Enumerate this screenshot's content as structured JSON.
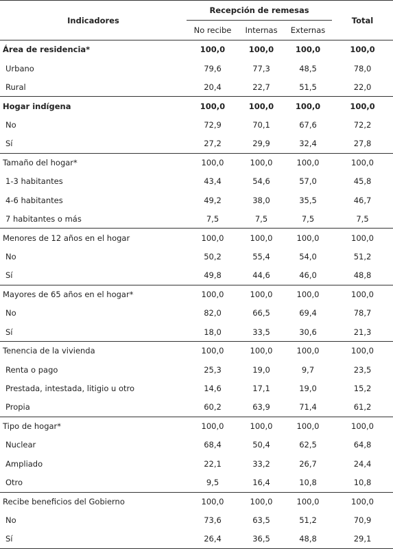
{
  "header": {
    "indicator": "Indicadores",
    "group": "Recepción de remesas",
    "subcols": [
      "No recibe",
      "Internas",
      "Externas"
    ],
    "total": "Total"
  },
  "sections": [
    {
      "label": "Área de residencia*",
      "bold": true,
      "values": [
        "100,0",
        "100,0",
        "100,0",
        "100,0"
      ],
      "rows": [
        {
          "label": "Urbano",
          "values": [
            "79,6",
            "77,3",
            "48,5",
            "78,0"
          ]
        },
        {
          "label": "Rural",
          "values": [
            "20,4",
            "22,7",
            "51,5",
            "22,0"
          ]
        }
      ]
    },
    {
      "label": "Hogar indígena",
      "bold": true,
      "values": [
        "100,0",
        "100,0",
        "100,0",
        "100,0"
      ],
      "rows": [
        {
          "label": "No",
          "values": [
            "72,9",
            "70,1",
            "67,6",
            "72,2"
          ]
        },
        {
          "label": "Sí",
          "values": [
            "27,2",
            "29,9",
            "32,4",
            "27,8"
          ]
        }
      ]
    },
    {
      "label": "Tamaño del hogar*",
      "bold": false,
      "values": [
        "100,0",
        "100,0",
        "100,0",
        "100,0"
      ],
      "rows": [
        {
          "label": "1-3 habitantes",
          "values": [
            "43,4",
            "54,6",
            "57,0",
            "45,8"
          ]
        },
        {
          "label": "4-6 habitantes",
          "values": [
            "49,2",
            "38,0",
            "35,5",
            "46,7"
          ]
        },
        {
          "label": "7 habitantes o más",
          "values": [
            "7,5",
            "7,5",
            "7,5",
            "7,5"
          ]
        }
      ]
    },
    {
      "label": "Menores de 12 años en el hogar",
      "bold": false,
      "values": [
        "100,0",
        "100,0",
        "100,0",
        "100,0"
      ],
      "rows": [
        {
          "label": "No",
          "values": [
            "50,2",
            "55,4",
            "54,0",
            "51,2"
          ]
        },
        {
          "label": "Sí",
          "values": [
            "49,8",
            "44,6",
            "46,0",
            "48,8"
          ]
        }
      ]
    },
    {
      "label": "Mayores de 65 años en el hogar*",
      "bold": false,
      "values": [
        "100,0",
        "100,0",
        "100,0",
        "100,0"
      ],
      "rows": [
        {
          "label": "No",
          "values": [
            "82,0",
            "66,5",
            "69,4",
            "78,7"
          ]
        },
        {
          "label": "Sí",
          "values": [
            "18,0",
            "33,5",
            "30,6",
            "21,3"
          ]
        }
      ]
    },
    {
      "label": "Tenencia de la vivienda",
      "bold": false,
      "values": [
        "100,0",
        "100,0",
        "100,0",
        "100,0"
      ],
      "rows": [
        {
          "label": "Renta o pago",
          "values": [
            "25,3",
            "19,0",
            "9,7",
            "23,5"
          ]
        },
        {
          "label": "Prestada, intestada, litigio u otro",
          "values": [
            "14,6",
            "17,1",
            "19,0",
            "15,2"
          ]
        },
        {
          "label": "Propia",
          "values": [
            "60,2",
            "63,9",
            "71,4",
            "61,2"
          ]
        }
      ]
    },
    {
      "label": "Tipo de hogar*",
      "bold": false,
      "values": [
        "100,0",
        "100,0",
        "100,0",
        "100,0"
      ],
      "rows": [
        {
          "label": "Nuclear",
          "values": [
            "68,4",
            "50,4",
            "62,5",
            "64,8"
          ]
        },
        {
          "label": "Ampliado",
          "values": [
            "22,1",
            "33,2",
            "26,7",
            "24,4"
          ]
        },
        {
          "label": "Otro",
          "values": [
            "9,5",
            "16,4",
            "10,8",
            "10,8"
          ]
        }
      ]
    },
    {
      "label": "Recibe beneficios del Gobierno",
      "bold": false,
      "values": [
        "100,0",
        "100,0",
        "100,0",
        "100,0"
      ],
      "rows": [
        {
          "label": "No",
          "values": [
            "73,6",
            "63,5",
            "51,2",
            "70,9"
          ]
        },
        {
          "label": "Sí",
          "values": [
            "26,4",
            "36,5",
            "48,8",
            "29,1"
          ]
        }
      ]
    }
  ]
}
